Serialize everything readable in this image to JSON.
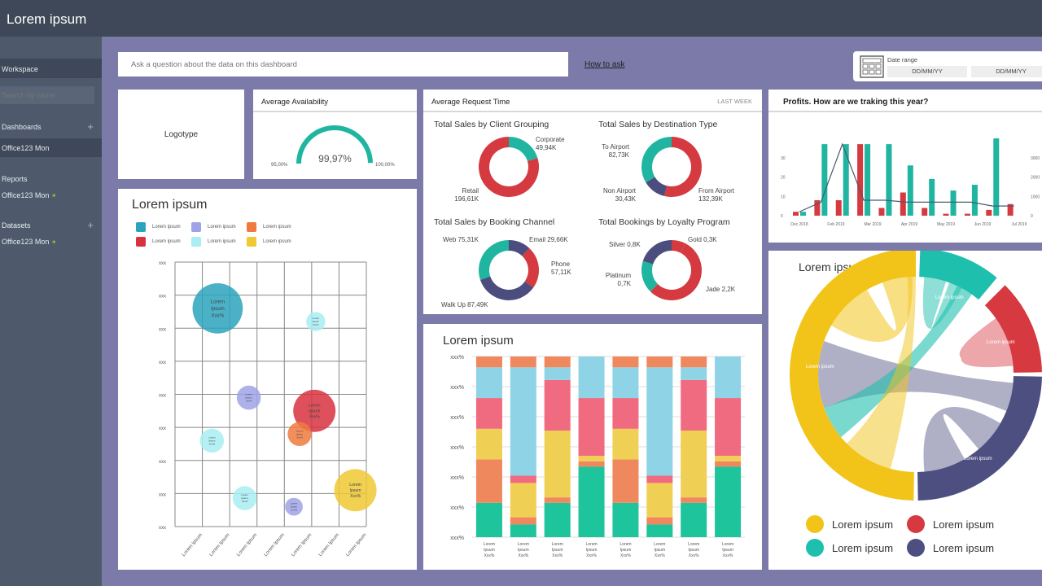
{
  "app": {
    "title": "Lorem ipsum"
  },
  "sidebar": {
    "workspace": "Workspace",
    "search_placeholder": "Search by name",
    "sections": [
      {
        "label": "Dashboards",
        "items": [
          "Office123 Mon"
        ]
      },
      {
        "label": "Reports",
        "items": [
          "Office123 Mon"
        ]
      },
      {
        "label": "Datasets",
        "items": [
          "Office123 Mon"
        ]
      }
    ]
  },
  "search": {
    "placeholder": "Ask a question about the data on this dashboard"
  },
  "how_to_ask": "How to ask",
  "date_range": {
    "label": "Date range",
    "from": "DD/MM/YY",
    "to": "DD/MM/YY",
    "icon": "calendar-icon"
  },
  "logotype": "Logotype",
  "availability": {
    "title": "Average Availability",
    "value": "99,97%",
    "min": "95,00%",
    "max": "100,00%",
    "fill": 0.994,
    "color": "#1fb5a0"
  },
  "request": {
    "title": "Average Request Time",
    "period": "LAST WEEK",
    "donuts": [
      {
        "title": "Total Sales by Client Grouping",
        "slices": [
          {
            "label": "Corporate",
            "value": "49,94K",
            "v": 49.94,
            "color": "#1fb5a0"
          },
          {
            "label": "Retail",
            "value": "196,61K",
            "v": 196.61,
            "color": "#d43a3f"
          }
        ]
      },
      {
        "title": "Total Sales by Destination Type",
        "slices": [
          {
            "label": "From Airport",
            "value": "132,39K",
            "v": 132.39,
            "color": "#d43a3f"
          },
          {
            "label": "Non Airport",
            "value": "30,43K",
            "v": 30.43,
            "color": "#4a4d7e"
          },
          {
            "label": "To Airport",
            "value": "82,73K",
            "v": 82.73,
            "color": "#1fb5a0"
          }
        ]
      },
      {
        "title": "Total Sales by Booking Channel",
        "slices": [
          {
            "label": "Email",
            "value": "29,66K",
            "v": 29.66,
            "color": "#4a4d7e"
          },
          {
            "label": "Phone",
            "value": "57,11K",
            "v": 57.11,
            "color": "#d43a3f"
          },
          {
            "label": "Walk Up",
            "value": "87,49K",
            "v": 87.49,
            "color": "#4a4d7e"
          },
          {
            "label": "Web",
            "value": "75,31K",
            "v": 75.31,
            "color": "#1fb5a0"
          }
        ]
      },
      {
        "title": "Total Bookings by Loyalty Program",
        "slices": [
          {
            "label": "Gold",
            "value": "0,3K",
            "v": 0.3,
            "color": "#d43a3f"
          },
          {
            "label": "Jade",
            "value": "2,2K",
            "v": 2.2,
            "color": "#d43a3f"
          },
          {
            "label": "Platinum",
            "value": "0,7K",
            "v": 0.7,
            "color": "#1fb5a0"
          },
          {
            "label": "Silver",
            "value": "0,8K",
            "v": 0.8,
            "color": "#4a4d7e"
          }
        ]
      }
    ]
  },
  "profits": {
    "title": "Profits. How are we traking this year?",
    "x_labels": [
      "Dec 2018",
      "Feb 2019",
      "Mar 2019",
      "Apr 2019",
      "May 2019",
      "Jun 2019",
      "Jul 2019"
    ],
    "y_left": [
      "0",
      "10",
      "20",
      "30"
    ],
    "y_right": [
      "0",
      "1000",
      "2000",
      "3000"
    ],
    "red": [
      2,
      8,
      8,
      37,
      4,
      12,
      4,
      1,
      1,
      3,
      6
    ],
    "teal": [
      2,
      37,
      37,
      37,
      37,
      26,
      19,
      13,
      16,
      40,
      0
    ],
    "line": [
      2,
      7,
      37,
      8,
      8,
      7,
      7,
      7,
      7,
      5,
      5
    ],
    "ymax": 40
  },
  "bubble": {
    "title": "Lorem ipsum",
    "legend": [
      {
        "label": "Lorem ipsum",
        "color": "#2aa3bd"
      },
      {
        "label": "Lorem ipsum",
        "color": "#9fa3e6"
      },
      {
        "label": "Lorem ipsum",
        "color": "#f07a3e"
      },
      {
        "label": "Lorem ipsum",
        "color": "#d8323f"
      },
      {
        "label": "Lorem ipsum",
        "color": "#a8eef2"
      },
      {
        "label": "Lorem ipsum",
        "color": "#f0c832"
      }
    ],
    "y_ticks": [
      "xxx",
      "xxx",
      "xxx",
      "xxx",
      "xxx",
      "xxx",
      "xxx",
      "xxx",
      "xxx"
    ],
    "x_ticks": [
      "Lorem Ipsum",
      "Lorem Ipsum",
      "Lorem Ipsum",
      "Lorem Ipsum",
      "Lorem Ipsum",
      "Lorem Ipsum",
      "Lorem Ipsum"
    ],
    "points": [
      {
        "x": 1.56,
        "y": 6.6,
        "size": 96,
        "color": "#2aa3bd",
        "label": "Lorem Ipsum Xxx%"
      },
      {
        "x": 5.15,
        "y": 6.2,
        "size": 14,
        "color": "#a8eef2",
        "label": "Lorem Ipsum Xxx%"
      },
      {
        "x": 2.7,
        "y": 3.9,
        "size": 22,
        "color": "#9fa3e6",
        "label": "Lorem Ipsum Xxx%"
      },
      {
        "x": 5.1,
        "y": 3.5,
        "size": 68,
        "color": "#d8323f",
        "label": "Lorem Ipsum Xxx%"
      },
      {
        "x": 4.56,
        "y": 2.8,
        "size": 22,
        "color": "#f07a3e",
        "label": "Lorem Ipsum Xxx%"
      },
      {
        "x": 1.35,
        "y": 2.6,
        "size": 22,
        "color": "#a8eef2",
        "label": "Lorem Ipsum Xxx%"
      },
      {
        "x": 6.6,
        "y": 1.1,
        "size": 68,
        "color": "#f0c832",
        "label": "Lorem Ipsum Xxx%"
      },
      {
        "x": 2.55,
        "y": 0.86,
        "size": 22,
        "color": "#a8eef2",
        "label": "Lorem Ipsum Xxx%"
      },
      {
        "x": 4.35,
        "y": 0.6,
        "size": 12,
        "color": "#9fa3e6",
        "label": "Lorem Ipsum Xxx%"
      }
    ]
  },
  "stacked": {
    "title": "Lorem ipsum",
    "y_ticks": [
      "xxx%",
      "xxx%",
      "xxx%",
      "xxx%",
      "xxx%",
      "xxx%",
      "xxx%"
    ],
    "x_label": "Lorem Ipsum Xxx%",
    "colors": [
      "#1ec49c",
      "#f0885e",
      "#f0cf55",
      "#f06b80",
      "#8fd3e6",
      "#f0885e"
    ],
    "columns": [
      [
        19,
        24,
        17,
        17,
        17,
        6
      ],
      [
        7,
        4,
        19,
        4,
        60,
        6
      ],
      [
        19,
        3,
        37,
        28,
        7,
        6
      ],
      [
        39,
        3,
        3,
        32,
        23,
        0
      ],
      [
        19,
        24,
        17,
        17,
        17,
        6
      ],
      [
        7,
        4,
        19,
        4,
        60,
        6
      ],
      [
        19,
        3,
        37,
        28,
        7,
        6
      ],
      [
        39,
        3,
        3,
        32,
        23,
        0
      ]
    ]
  },
  "chord": {
    "title": "Lorem ipsum",
    "segment_labels": [
      "Lorem ipsum",
      "Lorem ipsum",
      "Lorem ipsum",
      "Lorem ipsum"
    ],
    "legend": [
      {
        "label": "Lorem ipsum",
        "color": "#f2c419"
      },
      {
        "label": "Lorem ipsum",
        "color": "#d63a40"
      },
      {
        "label": "Lorem ipsum",
        "color": "#1fbfae"
      },
      {
        "label": "Lorem ipsum",
        "color": "#4d4f80"
      }
    ]
  }
}
